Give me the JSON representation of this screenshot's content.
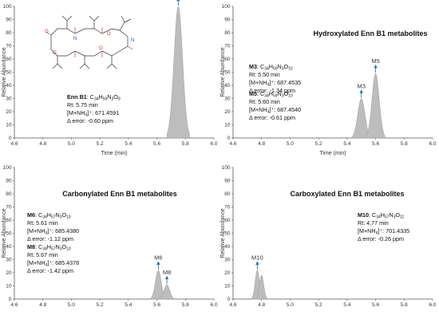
{
  "chart_data": [
    {
      "panel": "top-left",
      "type": "area",
      "title": "",
      "xlabel": "Time (min)",
      "ylabel": "Relative Abundance",
      "xlim": [
        4.6,
        6.0
      ],
      "ylim": [
        0,
        100
      ],
      "x_ticks": [
        "4.6",
        "4.8",
        "5.0",
        "5.2",
        "5.4",
        "5.6",
        "5.8",
        "6.0"
      ],
      "y_ticks": [
        "0",
        "10",
        "20",
        "30",
        "40",
        "50",
        "60",
        "70",
        "80",
        "90",
        "100"
      ],
      "peaks": [
        {
          "name": "Enn B1",
          "rt": 5.75,
          "height": 100,
          "width": 0.03
        }
      ],
      "compounds": [
        {
          "name": "Enn B1",
          "formula_main": "C",
          "formula_parts": [
            [
              "34",
              true
            ],
            [
              "H",
              false
            ],
            [
              "59",
              true
            ],
            [
              "N",
              false
            ],
            [
              "3",
              true
            ],
            [
              "O",
              false
            ],
            [
              "9",
              true
            ]
          ],
          "rt_text": "Rt: 5.75 min",
          "mz_prefix": "[M+NH",
          "mz_sub": "4",
          "mz_suffix": "]⁺: 671.4591",
          "error_text": "Δ error: -0.60 ppm"
        }
      ],
      "has_structure_drawing": true
    },
    {
      "panel": "top-right",
      "type": "area",
      "title": "Hydroxylated Enn B1 metabolites",
      "xlabel": "Time (min)",
      "ylabel": "Relative Abundance",
      "xlim": [
        4.6,
        6.0
      ],
      "ylim": [
        0,
        100
      ],
      "x_ticks": [
        "4.6",
        "4.8",
        "5.0",
        "5.2",
        "5.4",
        "5.6",
        "5.8",
        "6.0"
      ],
      "y_ticks": [
        "0",
        "10",
        "20",
        "30",
        "40",
        "50",
        "60",
        "70",
        "80",
        "90",
        "100"
      ],
      "peaks": [
        {
          "name": "M3",
          "rt": 5.5,
          "height": 30,
          "width": 0.025
        },
        {
          "name": "M5",
          "rt": 5.6,
          "height": 49,
          "width": 0.025
        }
      ],
      "compounds": [
        {
          "name": "M3",
          "formula_main": "C",
          "formula_parts": [
            [
              "34",
              true
            ],
            [
              "H",
              false
            ],
            [
              "59",
              true
            ],
            [
              "N",
              false
            ],
            [
              "3",
              true
            ],
            [
              "O",
              false
            ],
            [
              "10",
              true
            ]
          ],
          "rt_text": "Rt: 5.50 min",
          "mz_prefix": "[M+NH",
          "mz_sub": "4",
          "mz_suffix": "]⁺: 687.4535",
          "error_text": "Δ error: -1.34 ppm"
        },
        {
          "name": "M5",
          "formula_main": "C",
          "formula_parts": [
            [
              "34",
              true
            ],
            [
              "H",
              false
            ],
            [
              "59",
              true
            ],
            [
              "N",
              false
            ],
            [
              "3",
              true
            ],
            [
              "O",
              false
            ],
            [
              "10",
              true
            ]
          ],
          "rt_text": "Rt: 5.60 min",
          "mz_prefix": "[M+NH",
          "mz_sub": "4",
          "mz_suffix": "]⁺: 687.4540",
          "error_text": "Δ error: -0.61 ppm"
        }
      ]
    },
    {
      "panel": "bottom-left",
      "type": "area",
      "title": "Carbonylated Enn B1 metabolites",
      "xlabel": "",
      "ylabel": "Relative Abundance",
      "xlim": [
        4.6,
        6.0
      ],
      "ylim": [
        0,
        100
      ],
      "x_ticks": [
        "4.6",
        "4.8",
        "5.0",
        "5.2",
        "5.4",
        "5.6",
        "5.8",
        "6.0"
      ],
      "y_ticks": [
        "0",
        "10",
        "20",
        "30",
        "40",
        "50",
        "60",
        "70",
        "80",
        "90",
        "100"
      ],
      "peaks": [
        {
          "name": "M6",
          "rt": 5.61,
          "height": 22,
          "width": 0.02
        },
        {
          "name": "M8",
          "rt": 5.67,
          "height": 11,
          "width": 0.02
        }
      ],
      "compounds": [
        {
          "name": "M6",
          "formula_main": "C",
          "formula_parts": [
            [
              "34",
              true
            ],
            [
              "H",
              false
            ],
            [
              "57",
              true
            ],
            [
              "N",
              false
            ],
            [
              "3",
              true
            ],
            [
              "O",
              false
            ],
            [
              "10",
              true
            ]
          ],
          "rt_text": "Rt: 5.61 min",
          "mz_prefix": "[M+NH",
          "mz_sub": "4",
          "mz_suffix": "]⁺: 685.4380",
          "error_text": "Δ error: -1.12 ppm"
        },
        {
          "name": "M8",
          "formula_main": "C",
          "formula_parts": [
            [
              "34",
              true
            ],
            [
              "H",
              false
            ],
            [
              "57",
              true
            ],
            [
              "N",
              false
            ],
            [
              "3",
              true
            ],
            [
              "O",
              false
            ],
            [
              "10",
              true
            ]
          ],
          "rt_text": "Rt: 5.67 min",
          "mz_prefix": "[M+NH",
          "mz_sub": "4",
          "mz_suffix": "]⁺: 685.4378",
          "error_text": "Δ error: -1.42 ppm"
        }
      ]
    },
    {
      "panel": "bottom-right",
      "type": "area",
      "title": "Carboxylated Enn B1 metabolites",
      "xlabel": "",
      "ylabel": "Relative Abundance",
      "xlim": [
        4.6,
        6.0
      ],
      "ylim": [
        0,
        100
      ],
      "x_ticks": [
        "4.6",
        "4.8",
        "5.0",
        "5.2",
        "5.4",
        "5.6",
        "5.8",
        "6.0"
      ],
      "y_ticks": [
        "0",
        "10",
        "20",
        "30",
        "40",
        "50",
        "60",
        "70",
        "80",
        "90",
        "100"
      ],
      "peaks": [
        {
          "name": "M10",
          "rt": 4.77,
          "height": 22,
          "width": 0.015
        },
        {
          "name": "",
          "rt": 4.8,
          "height": 18,
          "width": 0.015
        }
      ],
      "compounds": [
        {
          "name": "M10",
          "formula_main": "C",
          "formula_parts": [
            [
              "34",
              true
            ],
            [
              "H",
              false
            ],
            [
              "57",
              true
            ],
            [
              "N",
              false
            ],
            [
              "3",
              true
            ],
            [
              "O",
              false
            ],
            [
              "11",
              true
            ]
          ],
          "rt_text": "Rt: 4,77 min",
          "mz_prefix": "[M+NH",
          "mz_sub": "4",
          "mz_suffix": "]⁺: 701.4335",
          "error_text": "Δ error: -0.26 ppm"
        }
      ]
    }
  ],
  "colors": {
    "peak_fill": "#bdbdbd",
    "peak_stroke": "#9a9a9a",
    "arrow": "#2e74b5",
    "axis": "#555555",
    "structure_line": "#333333",
    "structure_oxygen": "#d9342b",
    "structure_nitrogen": "#2b4fd9"
  }
}
